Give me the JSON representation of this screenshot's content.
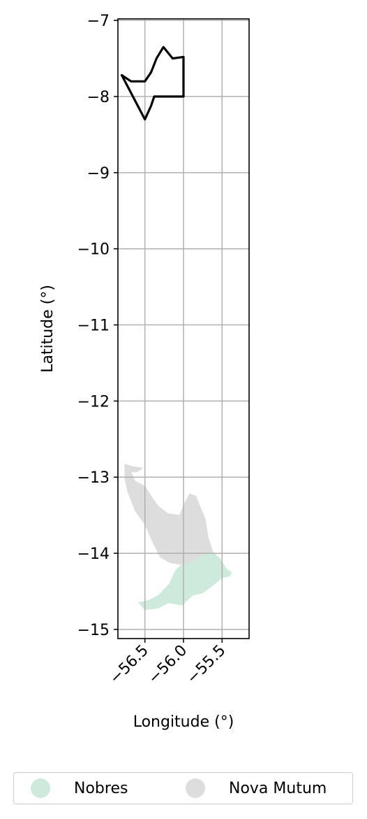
{
  "chart_data": {
    "type": "map",
    "xlabel": "Longitude (°)",
    "ylabel": "Latitude (°)",
    "xlim": [
      -56.85,
      -55.15
    ],
    "ylim": [
      -15.12,
      -6.98
    ],
    "x_ticks": [
      -56.5,
      -56.0,
      -55.5
    ],
    "x_tick_labels": [
      "−56.5",
      "−56.0",
      "−55.5"
    ],
    "y_ticks": [
      -7,
      -8,
      -9,
      -10,
      -11,
      -12,
      -13,
      -14,
      -15
    ],
    "y_tick_labels": [
      "−7",
      "−8",
      "−9",
      "−10",
      "−11",
      "−12",
      "−13",
      "−14",
      "−15"
    ],
    "grid": true,
    "legend_position": "bottom",
    "regions": [
      {
        "name": "Nova Mutum",
        "color": "#dddddd",
        "polygon": [
          [
            -56.76,
            -12.83
          ],
          [
            -56.66,
            -12.86
          ],
          [
            -56.53,
            -12.88
          ],
          [
            -56.6,
            -12.93
          ],
          [
            -56.68,
            -12.93
          ],
          [
            -56.63,
            -13.05
          ],
          [
            -56.5,
            -13.12
          ],
          [
            -56.42,
            -13.25
          ],
          [
            -56.33,
            -13.38
          ],
          [
            -56.2,
            -13.48
          ],
          [
            -56.05,
            -13.5
          ],
          [
            -55.98,
            -13.33
          ],
          [
            -55.92,
            -13.22
          ],
          [
            -55.84,
            -13.25
          ],
          [
            -55.78,
            -13.4
          ],
          [
            -55.72,
            -13.55
          ],
          [
            -55.68,
            -13.8
          ],
          [
            -55.62,
            -13.98
          ],
          [
            -55.75,
            -14.02
          ],
          [
            -55.88,
            -14.12
          ],
          [
            -56.02,
            -14.15
          ],
          [
            -56.18,
            -14.12
          ],
          [
            -56.3,
            -14.05
          ],
          [
            -56.4,
            -13.85
          ],
          [
            -56.5,
            -13.62
          ],
          [
            -56.62,
            -13.45
          ],
          [
            -56.72,
            -13.2
          ],
          [
            -56.76,
            -13.02
          ]
        ]
      },
      {
        "name": "Nobres",
        "color": "#cdeadc",
        "polygon": [
          [
            -55.62,
            -13.98
          ],
          [
            -55.52,
            -14.08
          ],
          [
            -55.45,
            -14.2
          ],
          [
            -55.38,
            -14.25
          ],
          [
            -55.4,
            -14.3
          ],
          [
            -55.5,
            -14.32
          ],
          [
            -55.62,
            -14.42
          ],
          [
            -55.75,
            -14.52
          ],
          [
            -55.88,
            -14.55
          ],
          [
            -56.02,
            -14.68
          ],
          [
            -56.2,
            -14.65
          ],
          [
            -56.33,
            -14.72
          ],
          [
            -56.5,
            -14.74
          ],
          [
            -56.58,
            -14.65
          ],
          [
            -56.45,
            -14.62
          ],
          [
            -56.32,
            -14.55
          ],
          [
            -56.18,
            -14.4
          ],
          [
            -56.1,
            -14.22
          ],
          [
            -56.02,
            -14.15
          ],
          [
            -55.88,
            -14.12
          ],
          [
            -55.75,
            -14.02
          ]
        ]
      }
    ],
    "outline": {
      "color": "#000000",
      "polygon": [
        [
          -56.8,
          -7.72
        ],
        [
          -56.68,
          -7.8
        ],
        [
          -56.5,
          -7.8
        ],
        [
          -56.42,
          -7.68
        ],
        [
          -56.35,
          -7.5
        ],
        [
          -56.26,
          -7.35
        ],
        [
          -56.14,
          -7.5
        ],
        [
          -56.0,
          -7.48
        ],
        [
          -56.0,
          -8.0
        ],
        [
          -56.38,
          -8.0
        ],
        [
          -56.42,
          -8.12
        ],
        [
          -56.5,
          -8.3
        ]
      ]
    },
    "legend": [
      "Nobres",
      "Nova Mutum"
    ]
  }
}
